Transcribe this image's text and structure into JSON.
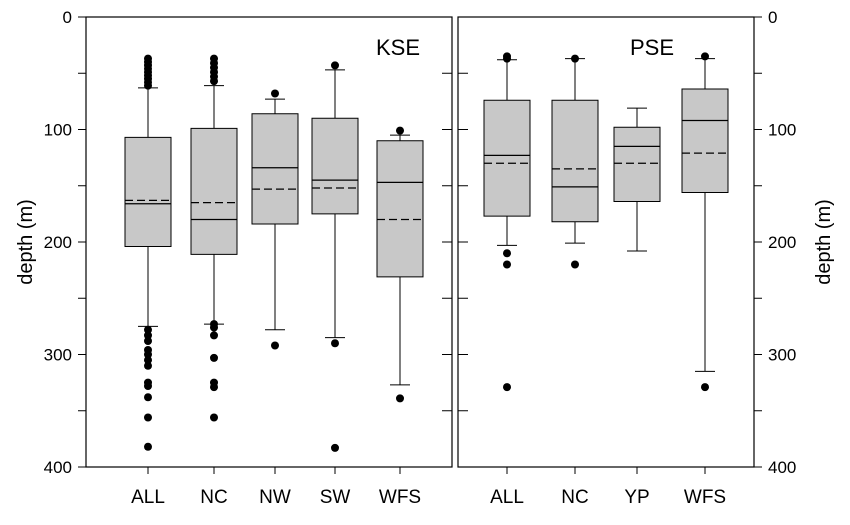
{
  "chart_data": {
    "type": "box",
    "ylabel": "depth (m)",
    "ylim": [
      0,
      400
    ],
    "y_inverted": true,
    "yticks": [
      0,
      50,
      100,
      150,
      200,
      250,
      300,
      350,
      400
    ],
    "ytick_labels": [
      "0",
      "",
      "100",
      "",
      "200",
      "",
      "300",
      "",
      "400"
    ],
    "grid": false,
    "legend": "none",
    "style": {
      "box_fill": "#c8c8c8",
      "line_color": "#000000",
      "median_line": "solid",
      "mean_line": "dashed",
      "outlier_marker": "filled-circle"
    },
    "panels": [
      {
        "title": "KSE",
        "categories": [
          "ALL",
          "NC",
          "NW",
          "SW",
          "WFS"
        ],
        "boxes": [
          {
            "category": "ALL",
            "whisker_low": 63,
            "q1": 107,
            "median": 166,
            "mean": 163,
            "q3": 204,
            "whisker_high": 275,
            "outliers": [
              37,
              40,
              43,
              46,
              49,
              52,
              55,
              58,
              61,
              278,
              283,
              288,
              296,
              300,
              305,
              310,
              325,
              328,
              338,
              356,
              382
            ]
          },
          {
            "category": "NC",
            "whisker_low": 61,
            "q1": 99,
            "median": 180,
            "mean": 165,
            "q3": 211,
            "whisker_high": 273,
            "outliers": [
              37,
              41,
              45,
              49,
              53,
              57,
              273,
              276,
              283,
              303,
              325,
              329,
              356
            ]
          },
          {
            "category": "NW",
            "whisker_low": 73,
            "q1": 86,
            "median": 134,
            "mean": 153,
            "q3": 184,
            "whisker_high": 278,
            "outliers": [
              68,
              292
            ]
          },
          {
            "category": "SW",
            "whisker_low": 47,
            "q1": 90,
            "median": 145,
            "mean": 152,
            "q3": 175,
            "whisker_high": 285,
            "outliers": [
              43,
              290,
              383
            ]
          },
          {
            "category": "WFS",
            "whisker_low": 105,
            "q1": 110,
            "median": 147,
            "mean": 180,
            "q3": 231,
            "whisker_high": 327,
            "outliers": [
              101,
              339
            ]
          }
        ]
      },
      {
        "title": "PSE",
        "categories": [
          "ALL",
          "NC",
          "YP",
          "WFS"
        ],
        "boxes": [
          {
            "category": "ALL",
            "whisker_low": 38,
            "q1": 74,
            "median": 123,
            "mean": 130,
            "q3": 177,
            "whisker_high": 203,
            "outliers": [
              35,
              37,
              210,
              220,
              329
            ]
          },
          {
            "category": "NC",
            "whisker_low": 37,
            "q1": 74,
            "median": 151,
            "mean": 135,
            "q3": 182,
            "whisker_high": 201,
            "outliers": [
              37,
              220
            ]
          },
          {
            "category": "YP",
            "whisker_low": 81,
            "q1": 98,
            "median": 115,
            "mean": 130,
            "q3": 164,
            "whisker_high": 208,
            "outliers": []
          },
          {
            "category": "WFS",
            "whisker_low": 37,
            "q1": 64,
            "median": 92,
            "mean": 121,
            "q3": 156,
            "whisker_high": 315,
            "outliers": [
              35,
              329
            ]
          }
        ]
      }
    ]
  }
}
